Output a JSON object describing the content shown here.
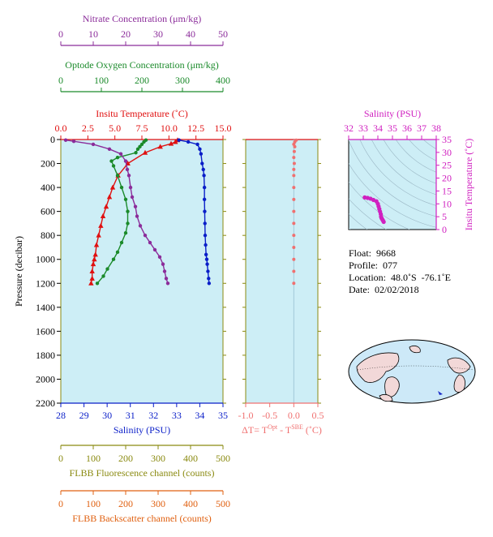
{
  "colors": {
    "nitrate": "#8b2c9a",
    "oxygen": "#1a8a2a",
    "temperature": "#e01010",
    "salinity": "#0a1ec8",
    "fluorescence": "#8a8a10",
    "backscatter": "#e06010",
    "delta_t": "#f07070",
    "inset_axis": "#d020c0",
    "plot_bg": "#cdeef6"
  },
  "axes": {
    "nitrate": {
      "label": "Nitrate Concentration (μm/kg)",
      "ticks": [
        "0",
        "10",
        "20",
        "30",
        "40",
        "50"
      ],
      "range": [
        0,
        50
      ]
    },
    "oxygen": {
      "label": "Optode Oxygen Concentration (μm/kg)",
      "ticks": [
        "0",
        "100",
        "200",
        "300",
        "400"
      ],
      "range": [
        0,
        400
      ]
    },
    "temperature": {
      "label": "Insitu Temperature (˚C)",
      "ticks": [
        "0.0",
        "2.5",
        "5.0",
        "7.5",
        "10.0",
        "12.5",
        "15.0"
      ],
      "range": [
        0,
        15
      ]
    },
    "salinity": {
      "label": "Salinity (PSU)",
      "ticks": [
        "28",
        "29",
        "30",
        "31",
        "32",
        "33",
        "34",
        "35"
      ],
      "range": [
        28,
        35
      ]
    },
    "pressure": {
      "label": "Pressure (decibar)",
      "ticks": [
        "0",
        "200",
        "400",
        "600",
        "800",
        "1000",
        "1200",
        "1400",
        "1600",
        "1800",
        "2000",
        "2200"
      ],
      "range": [
        0,
        2200
      ]
    },
    "fluorescence": {
      "label": "FLBB Fluorescence channel (counts)",
      "ticks": [
        "0",
        "100",
        "200",
        "300",
        "400",
        "500"
      ],
      "range": [
        0,
        500
      ]
    },
    "backscatter": {
      "label": "FLBB Backscatter channel (counts)",
      "ticks": [
        "0",
        "100",
        "200",
        "300",
        "400",
        "500"
      ],
      "range": [
        0,
        500
      ]
    },
    "delta_t": {
      "label_parts": [
        "ΔT= T",
        "Opt",
        " - T",
        "SBE",
        " (˚C)"
      ],
      "ticks": [
        "-1.0",
        "-0.5",
        "0.0",
        "0.5"
      ],
      "range": [
        -1.0,
        0.5
      ]
    },
    "inset_salinity": {
      "label": "Salinity (PSU)",
      "ticks": [
        "32",
        "33",
        "34",
        "35",
        "36",
        "37",
        "38"
      ],
      "range": [
        32,
        38
      ]
    },
    "inset_temperature": {
      "label": "Insitu Temperature (˚C)",
      "ticks": [
        "0",
        "5",
        "10",
        "15",
        "20",
        "25",
        "30",
        "35"
      ],
      "range": [
        0,
        35
      ]
    }
  },
  "info": {
    "float_label": "Float:",
    "float_value": "9668",
    "profile_label": "Profile:",
    "profile_value": "077",
    "location_label": "Location:",
    "location_value": "48.0˚S  -76.1˚E",
    "date_label": "Date:",
    "date_value": "02/02/2018"
  },
  "chart_data": [
    {
      "type": "line",
      "grid": false,
      "y_axis": "pressure",
      "ylim": [
        0,
        2200
      ],
      "y_inverted": true,
      "series": [
        {
          "axis": "temperature",
          "marker": "triangle",
          "x": [
            10.8,
            10.6,
            10.2,
            9.2,
            7.8,
            6.2,
            5.3,
            4.8,
            4.5,
            4.2,
            3.9,
            3.7,
            3.5,
            3.3,
            3.2,
            3.1,
            3.0,
            2.9,
            2.9,
            2.8
          ],
          "y": [
            5,
            20,
            35,
            60,
            110,
            200,
            300,
            400,
            480,
            560,
            640,
            720,
            800,
            880,
            960,
            1000,
            1040,
            1100,
            1160,
            1200
          ]
        },
        {
          "axis": "salinity",
          "x": [
            33.1,
            33.5,
            33.9,
            34.0,
            34.05,
            34.1,
            34.15,
            34.18,
            34.2,
            34.2,
            34.21,
            34.22,
            34.23,
            34.25,
            34.27,
            34.3,
            34.32,
            34.35,
            34.38,
            34.4
          ],
          "y": [
            5,
            20,
            40,
            80,
            120,
            200,
            250,
            300,
            400,
            500,
            600,
            700,
            800,
            880,
            960,
            1000,
            1040,
            1100,
            1160,
            1200
          ]
        },
        {
          "axis": "oxygen",
          "x": [
            210,
            205,
            200,
            195,
            190,
            185,
            140,
            125,
            130,
            140,
            150,
            160,
            165,
            165,
            160,
            150,
            140,
            130,
            115,
            105,
            90
          ],
          "y": [
            5,
            20,
            40,
            60,
            80,
            110,
            150,
            180,
            220,
            300,
            400,
            500,
            600,
            700,
            780,
            860,
            940,
            1000,
            1080,
            1140,
            1200
          ]
        },
        {
          "axis": "nitrate",
          "x": [
            1.5,
            4,
            10,
            15,
            18.5,
            20,
            20.5,
            21,
            21.5,
            22,
            23,
            23.5,
            24.5,
            26,
            27.5,
            29,
            30.5,
            31.5,
            32,
            32.5,
            33
          ],
          "y": [
            5,
            15,
            40,
            80,
            120,
            180,
            250,
            300,
            400,
            480,
            560,
            640,
            720,
            800,
            860,
            920,
            980,
            1040,
            1100,
            1160,
            1200
          ]
        }
      ]
    },
    {
      "type": "scatter",
      "x_axis": "delta_t",
      "y_axis": "pressure",
      "x": [
        0.05,
        0.02,
        0.0,
        0.02,
        0.01,
        0.0,
        0.01,
        0.0,
        0.0,
        0.0,
        0.0,
        0.0,
        0.0,
        0.0,
        0.0,
        0.0,
        0.0,
        0.0
      ],
      "y": [
        5,
        20,
        40,
        60,
        100,
        150,
        200,
        250,
        300,
        400,
        500,
        600,
        700,
        800,
        900,
        1000,
        1100,
        1200
      ]
    },
    {
      "type": "scatter",
      "x_axis": "inset_salinity",
      "y_axis": "inset_temperature",
      "x": [
        33.1,
        33.3,
        33.5,
        33.7,
        33.9,
        34.0,
        34.05,
        34.1,
        34.15,
        34.2,
        34.22,
        34.25,
        34.3,
        34.35,
        34.4
      ],
      "y": [
        12.5,
        12.3,
        12.0,
        11.5,
        11.0,
        10.0,
        9.0,
        8.0,
        7.0,
        6.0,
        5.0,
        4.5,
        4.0,
        3.5,
        3.0
      ]
    }
  ]
}
